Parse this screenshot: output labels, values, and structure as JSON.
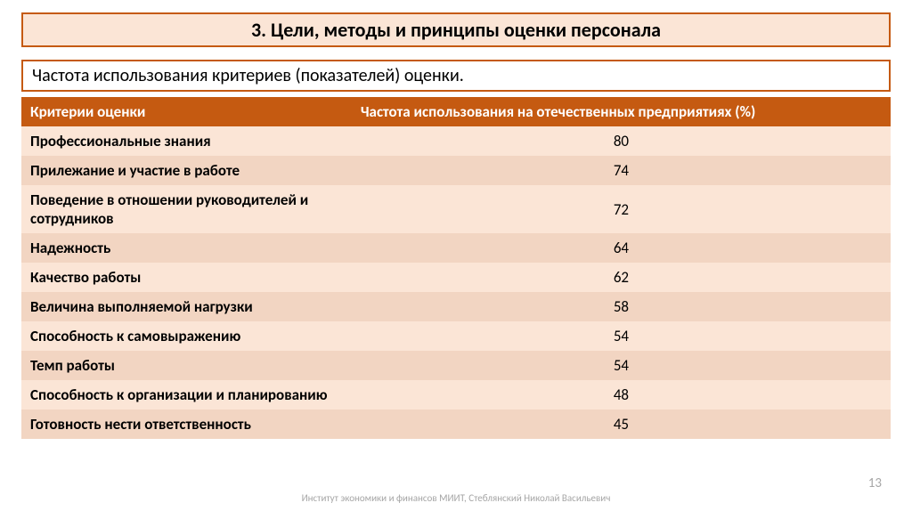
{
  "colors": {
    "accent": "#c55a11",
    "title_bg": "#fbe5d6",
    "header_row_bg": "#c55a11",
    "header_row_text": "#ffffff",
    "row_odd_bg": "#fbe5d6",
    "row_even_bg": "#f2d5c2",
    "row_text": "#000000",
    "subtitle_text": "#000000",
    "title_text": "#000000",
    "footer_text": "#a6a6a6"
  },
  "typography": {
    "title_fontsize": 22,
    "subtitle_fontsize": 20,
    "header_fontsize": 17,
    "cell_fontsize": 17,
    "footer_fontsize": 11
  },
  "title": "3. Цели, методы и принципы оценки персонала",
  "subtitle": "Частота использования критериев (показателей) оценки.",
  "table": {
    "type": "table",
    "col_widths_pct": [
      38,
      62
    ],
    "columns": [
      "Критерии оценки",
      "Частота использования на отечественных предприятиях (%)"
    ],
    "rows": [
      {
        "label": "Профессиональные знания",
        "value": 80
      },
      {
        "label": "Прилежание и участие в работе",
        "value": 74
      },
      {
        "label": "Поведение в отношении руководителей и сотрудников",
        "value": 72
      },
      {
        "label": "Надежность",
        "value": 64
      },
      {
        "label": "Качество работы",
        "value": 62
      },
      {
        "label": "Величина выполняемой нагрузки",
        "value": 58
      },
      {
        "label": "Способность к самовыражению",
        "value": 54
      },
      {
        "label": "Темп работы",
        "value": 54
      },
      {
        "label": "Способность к организации и планированию",
        "value": 48
      },
      {
        "label": "Готовность нести ответственность",
        "value": 45
      }
    ]
  },
  "footer": "Институт экономики и финансов МИИТ, Стеблянский Николай Васильевич",
  "page_number": "13"
}
